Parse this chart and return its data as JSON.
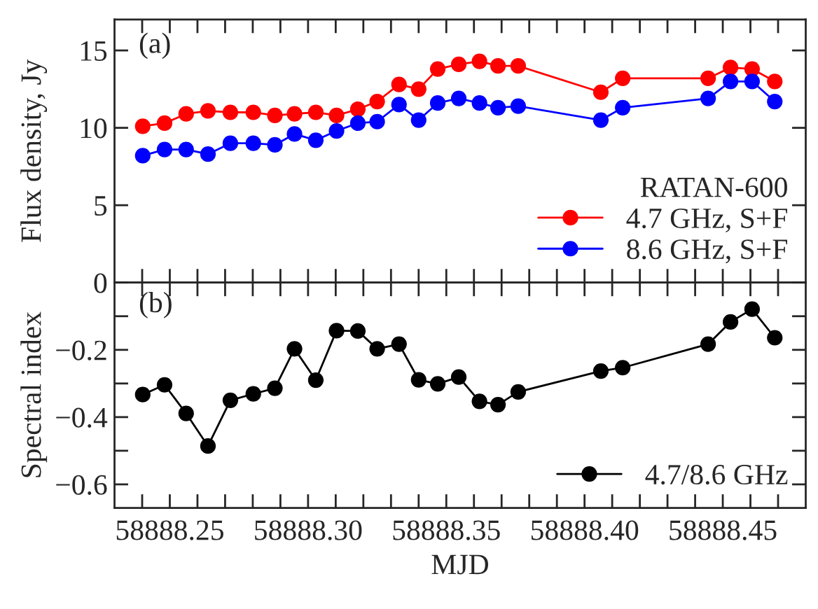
{
  "chart_data": [
    {
      "type": "line",
      "ylabel": "Flux density, Jy",
      "legend_title": "RATAN-600",
      "annotations": [
        "(a)"
      ],
      "x": [
        58888.2402,
        58888.2481,
        58888.2559,
        58888.2638,
        58888.2719,
        58888.2802,
        58888.288,
        58888.2951,
        58888.3028,
        58888.3103,
        58888.318,
        58888.325,
        58888.3329,
        58888.34,
        58888.3469,
        58888.3545,
        58888.362,
        58888.3687,
        58888.376,
        58888.4059,
        58888.4138,
        58888.4447,
        58888.4528,
        58888.4606,
        58888.4688
      ],
      "series": [
        {
          "name": "4.7 GHz, S+F",
          "color": "#ff0000",
          "values": [
            10.1,
            10.3,
            10.9,
            11.1,
            11.0,
            11.0,
            10.8,
            10.9,
            11.0,
            10.8,
            11.2,
            11.7,
            12.8,
            12.5,
            13.8,
            14.1,
            14.3,
            14.0,
            14.0,
            12.3,
            13.2,
            13.2,
            13.9,
            13.8,
            13.0
          ]
        },
        {
          "name": "8.6 GHz, S+F",
          "color": "#0000ff",
          "values": [
            8.2,
            8.6,
            8.6,
            8.3,
            9.0,
            9.0,
            8.9,
            9.6,
            9.2,
            9.8,
            10.3,
            10.4,
            11.5,
            10.5,
            11.6,
            11.9,
            11.6,
            11.3,
            11.4,
            10.5,
            11.3,
            11.9,
            13.0,
            13.0,
            11.7
          ]
        }
      ],
      "xlim": [
        58888.23,
        58888.48
      ],
      "ylim": [
        0,
        17
      ],
      "xticks": [
        58888.24,
        58888.25,
        58888.26,
        58888.27,
        58888.28,
        58888.29,
        58888.3,
        58888.31,
        58888.32,
        58888.33,
        58888.34,
        58888.35,
        58888.36,
        58888.37,
        58888.38,
        58888.39,
        58888.4,
        58888.41,
        58888.42,
        58888.43,
        58888.44,
        58888.45,
        58888.46,
        58888.47
      ],
      "yticks": [
        0,
        5,
        10,
        15
      ],
      "tick_labels": "y",
      "marker": "circle",
      "line_style": "solid",
      "grid": false,
      "legend": "bottom right"
    },
    {
      "type": "line",
      "xlabel": "MJD",
      "ylabel": "Spectral index",
      "annotations": [
        "(b)"
      ],
      "x": [
        58888.2402,
        58888.2481,
        58888.2559,
        58888.2638,
        58888.2719,
        58888.2802,
        58888.288,
        58888.2951,
        58888.3028,
        58888.3103,
        58888.318,
        58888.325,
        58888.3329,
        58888.34,
        58888.3469,
        58888.3545,
        58888.362,
        58888.3687,
        58888.376,
        58888.4059,
        58888.4138,
        58888.4447,
        58888.4528,
        58888.4606,
        58888.4688
      ],
      "series": [
        {
          "name": "4.7/8.6 GHz",
          "color": "#000000",
          "values": [
            -0.333,
            -0.304,
            -0.389,
            -0.486,
            -0.35,
            -0.331,
            -0.314,
            -0.197,
            -0.29,
            -0.143,
            -0.144,
            -0.197,
            -0.183,
            -0.289,
            -0.301,
            -0.281,
            -0.353,
            -0.363,
            -0.325,
            -0.263,
            -0.253,
            -0.183,
            -0.117,
            -0.079,
            -0.164
          ]
        }
      ],
      "xlim": [
        58888.23,
        58888.48
      ],
      "ylim": [
        -0.67,
        0
      ],
      "xticks": [
        {
          "value": 58888.24,
          "label": null
        },
        {
          "value": 58888.25,
          "label": "58888.25"
        },
        {
          "value": 58888.26,
          "label": null
        },
        {
          "value": 58888.27,
          "label": null
        },
        {
          "value": 58888.28,
          "label": null
        },
        {
          "value": 58888.29,
          "label": null
        },
        {
          "value": 58888.3,
          "label": "58888.30"
        },
        {
          "value": 58888.31,
          "label": null
        },
        {
          "value": 58888.32,
          "label": null
        },
        {
          "value": 58888.33,
          "label": null
        },
        {
          "value": 58888.34,
          "label": null
        },
        {
          "value": 58888.35,
          "label": "58888.35"
        },
        {
          "value": 58888.36,
          "label": null
        },
        {
          "value": 58888.37,
          "label": null
        },
        {
          "value": 58888.38,
          "label": null
        },
        {
          "value": 58888.39,
          "label": null
        },
        {
          "value": 58888.4,
          "label": "58888.40"
        },
        {
          "value": 58888.41,
          "label": null
        },
        {
          "value": 58888.42,
          "label": null
        },
        {
          "value": 58888.43,
          "label": null
        },
        {
          "value": 58888.44,
          "label": null
        },
        {
          "value": 58888.45,
          "label": "58888.45"
        },
        {
          "value": 58888.46,
          "label": null
        },
        {
          "value": 58888.47,
          "label": null
        }
      ],
      "yticks": [
        {
          "value": 0,
          "label": null
        },
        {
          "value": -0.1,
          "label": null
        },
        {
          "value": -0.2,
          "label": "−0.2"
        },
        {
          "value": -0.3,
          "label": null
        },
        {
          "value": -0.4,
          "label": "−0.4"
        },
        {
          "value": -0.5,
          "label": null
        },
        {
          "value": -0.6,
          "label": "−0.6"
        }
      ],
      "marker": "circle",
      "line_style": "solid",
      "grid": false,
      "legend": "bottom right"
    }
  ]
}
